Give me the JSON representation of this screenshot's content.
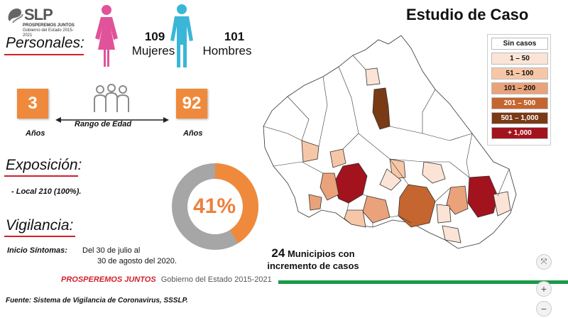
{
  "logo": {
    "text": "SLP",
    "subtitle_line1": "PROSPEREMOS JUNTOS",
    "subtitle_line2": "Gobierno del Estado 2015-2021"
  },
  "title": "Estudio de Caso",
  "personales": {
    "heading": "Personales:",
    "women_count": "109",
    "women_label": "Mujeres",
    "men_count": "101",
    "men_label": "Hombres"
  },
  "age": {
    "min_value": "3",
    "min_label": "Años",
    "range_label": "Rango de Edad",
    "max_value": "92",
    "max_label": "Años"
  },
  "exposicion": {
    "heading": "Exposición:",
    "detail": "- Local 210 (100%)."
  },
  "vigilancia": {
    "heading": "Vigilancia:",
    "inicio_label": "Inicio Síntomas:",
    "inicio_line1": "Del 30 de julio al",
    "inicio_line2": "30 de agosto del 2020."
  },
  "donut": {
    "percent_text": "41%",
    "percent_value": 41
  },
  "municipios": {
    "count": "24",
    "line1": "Municipios con",
    "line2": "incremento de casos"
  },
  "legend": [
    {
      "label": "Sin casos",
      "color": "#ffffff",
      "text_color": "#111111"
    },
    {
      "label": "1 – 50",
      "color": "#fbe4d6",
      "text_color": "#111111"
    },
    {
      "label": "51 – 100",
      "color": "#f6c7a7",
      "text_color": "#111111"
    },
    {
      "label": "101 – 200",
      "color": "#e9a27a",
      "text_color": "#111111"
    },
    {
      "label": "201 – 500",
      "color": "#c5652f",
      "text_color": "#ffffff"
    },
    {
      "label": "501 – 1,000",
      "color": "#7a3a16",
      "text_color": "#ffffff"
    },
    {
      "label": "+ 1,000",
      "color": "#a3131d",
      "text_color": "#ffffff"
    }
  ],
  "footer": {
    "brand": "PROSPEREMOS JUNTOS",
    "gov": "Gobierno del Estado 2015-2021",
    "source": "Fuente: Sistema de Vigilancia de Coronavirus, SSSLP."
  },
  "colors": {
    "accent_orange": "#ef8a3c",
    "underline_red": "#d21f2a",
    "women_pink": "#e0539a",
    "men_blue": "#39b6d8",
    "footer_green": "#1b9a4a",
    "donut_gray": "#a6a6a6"
  }
}
